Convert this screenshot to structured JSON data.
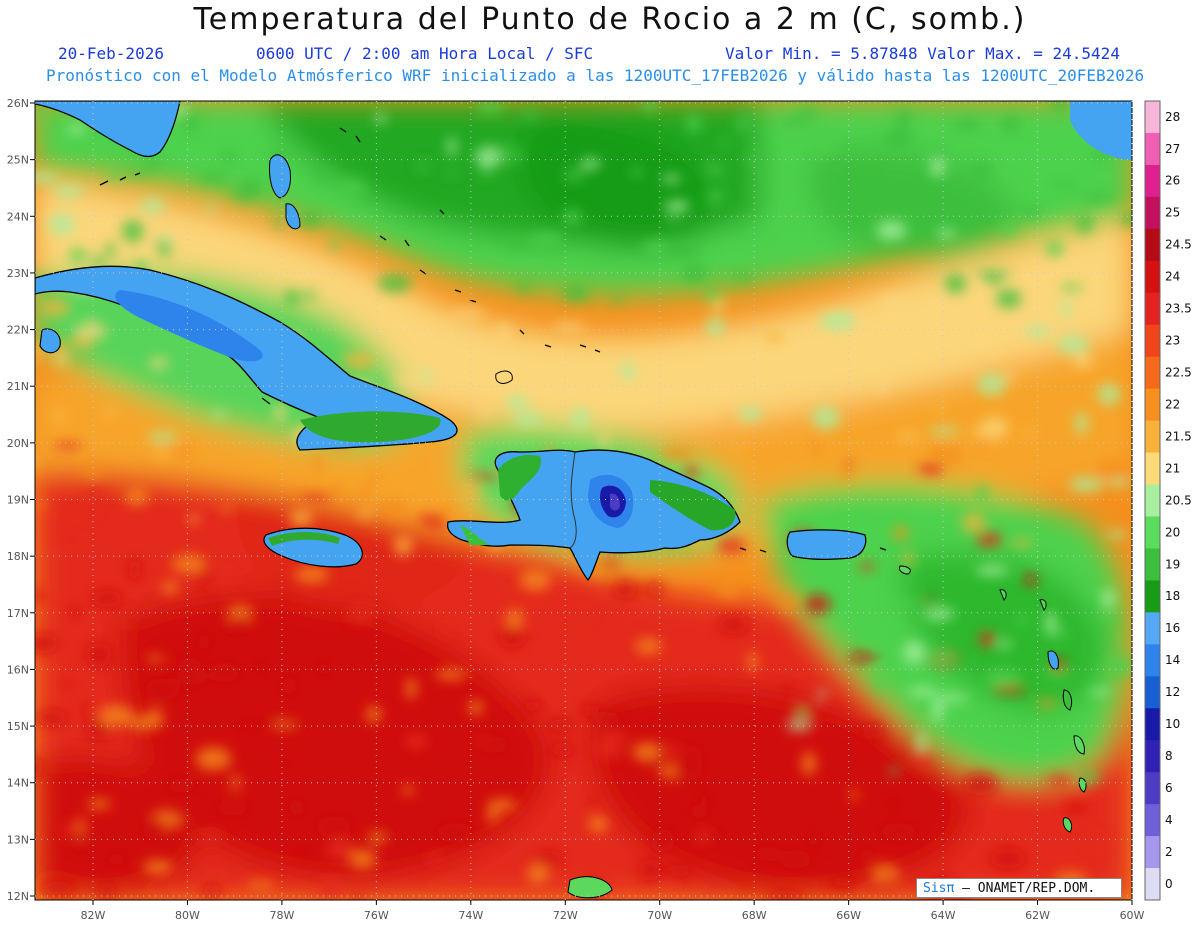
{
  "title": "Temperatura del Punto de Rocio a 2 m (C, somb.)",
  "date": "20-Feb-2026",
  "time_info": "0600 UTC / 2:00 am Hora Local / SFC",
  "min_max": "Valor Min. = 5.87848  Valor Max. = 24.5424",
  "forecast_info": "Pronóstico con el Modelo Atmósferico WRF inicializado a las 1200UTC_17FEB2026 y válido hasta las  1200UTC_20FEB2026",
  "credit": {
    "brand": "Sisπ",
    "text": "– ONAMET/REP.DOM."
  },
  "axes": {
    "lon_labels": [
      "82W",
      "80W",
      "78W",
      "76W",
      "74W",
      "72W",
      "70W",
      "68W",
      "66W",
      "64W",
      "62W",
      "60W"
    ],
    "lat_labels": [
      "26N",
      "25N",
      "24N",
      "23N",
      "22N",
      "21N",
      "20N",
      "19N",
      "18N",
      "17N",
      "16N",
      "15N",
      "14N",
      "13N",
      "12N"
    ]
  },
  "colorbar": {
    "labels": [
      "28",
      "27",
      "26",
      "25",
      "24.5",
      "24",
      "23.5",
      "23",
      "22.5",
      "22",
      "21.5",
      "21",
      "20.5",
      "20",
      "19",
      "18",
      "16",
      "14",
      "12",
      "10",
      "8",
      "6",
      "4",
      "2",
      "0"
    ],
    "colors": [
      "#f7b6d8",
      "#ef5fb4",
      "#e0208f",
      "#c3105e",
      "#b40c16",
      "#d41212",
      "#e52222",
      "#f2441a",
      "#f46a1a",
      "#f7901e",
      "#f8b23c",
      "#fbda7a",
      "#a8f0a0",
      "#5cdc5c",
      "#3cbf3c",
      "#169c16",
      "#54a8f4",
      "#2f84ec",
      "#1660d4",
      "#1a1aa8",
      "#3020b4",
      "#4c3cc4",
      "#6e60d8",
      "#a696ec",
      "#dcdcf4"
    ]
  },
  "regions": {
    "n_atlantic": "green moist air",
    "s_caribbean": "red humid air"
  }
}
